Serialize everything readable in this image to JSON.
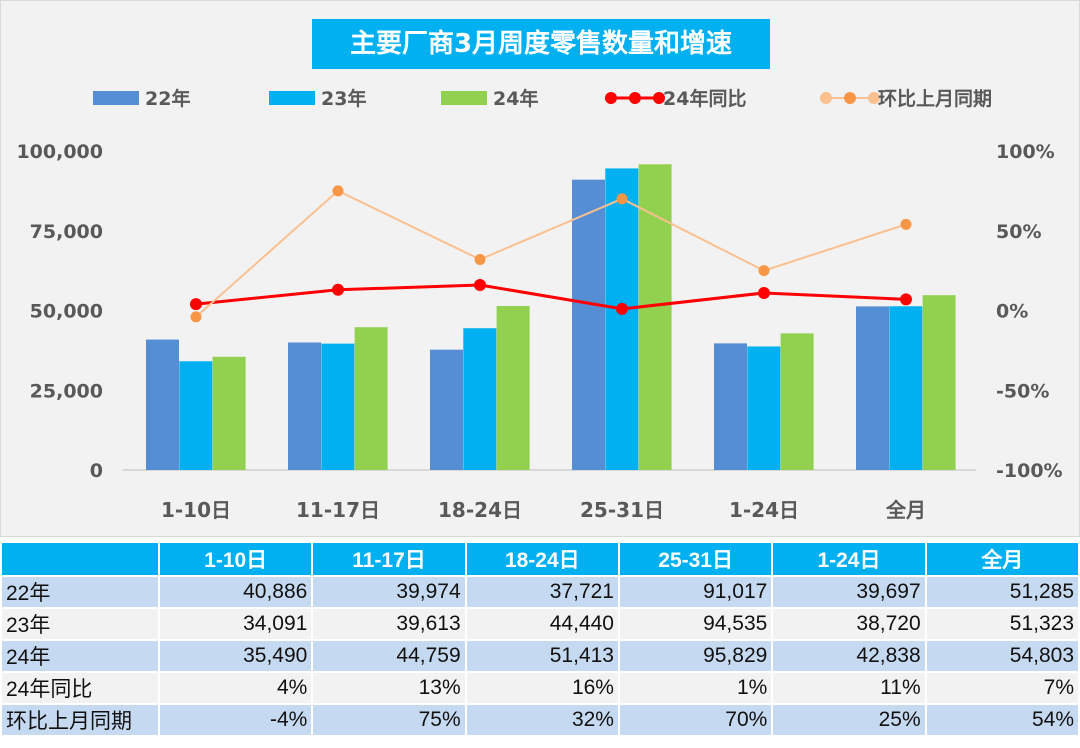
{
  "chart_data": {
    "type": "bar",
    "title": "主要厂商3月周度零售数量和增速",
    "categories": [
      "1-10日",
      "11-17日",
      "18-24日",
      "25-31日",
      "1-24日",
      "全月"
    ],
    "series": [
      {
        "name": "22年",
        "type": "bar",
        "axis": "left",
        "color": "#558ed5",
        "values": [
          40886,
          39974,
          37721,
          91017,
          39697,
          51285
        ]
      },
      {
        "name": "23年",
        "type": "bar",
        "axis": "left",
        "color": "#00b0f0",
        "values": [
          34091,
          39613,
          44440,
          94535,
          38720,
          51323
        ]
      },
      {
        "name": "24年",
        "type": "bar",
        "axis": "left",
        "color": "#92d050",
        "values": [
          35490,
          44759,
          51413,
          95829,
          42838,
          54803
        ]
      },
      {
        "name": "24年同比",
        "type": "line",
        "axis": "right",
        "color": "#ff0000",
        "values": [
          4,
          13,
          16,
          1,
          11,
          7
        ]
      },
      {
        "name": "环比上月同期",
        "type": "line",
        "axis": "right",
        "color": "#fac090",
        "marker_color": "#f79646",
        "values": [
          -4,
          75,
          32,
          70,
          25,
          54
        ]
      }
    ],
    "y_left": {
      "range": [
        0,
        100000
      ],
      "ticks": [
        "0",
        "25,000",
        "50,000",
        "75,000",
        "100,000"
      ]
    },
    "y_right": {
      "range": [
        -100,
        100
      ],
      "unit": "%",
      "ticks": [
        "-100%",
        "-50%",
        "0%",
        "50%",
        "100%"
      ]
    },
    "legend": "top",
    "grid": false
  },
  "table": {
    "headers": [
      "",
      "1-10日",
      "11-17日",
      "18-24日",
      "25-31日",
      "1-24日",
      "全月"
    ],
    "rows": [
      {
        "label": "22年",
        "cells": [
          "40,886",
          "39,974",
          "37,721",
          "91,017",
          "39,697",
          "51,285"
        ]
      },
      {
        "label": "23年",
        "cells": [
          "34,091",
          "39,613",
          "44,440",
          "94,535",
          "38,720",
          "51,323"
        ]
      },
      {
        "label": "24年",
        "cells": [
          "35,490",
          "44,759",
          "51,413",
          "95,829",
          "42,838",
          "54,803"
        ]
      },
      {
        "label": "24年同比",
        "cells": [
          "4%",
          "13%",
          "16%",
          "1%",
          "11%",
          "7%"
        ]
      },
      {
        "label": "环比上月同期",
        "cells": [
          "-4%",
          "75%",
          "32%",
          "70%",
          "25%",
          "54%"
        ]
      }
    ]
  }
}
